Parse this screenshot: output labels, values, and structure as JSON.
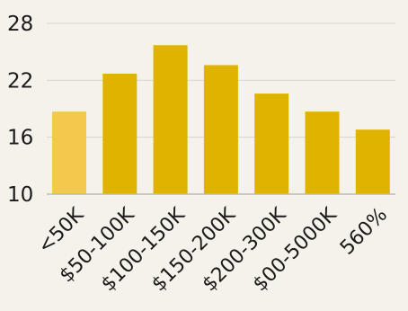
{
  "chart_data": {
    "type": "bar",
    "title": "",
    "xlabel": "",
    "ylabel": "",
    "categories": [
      "<50K",
      "$50-100K",
      "$100-150K",
      "$150-200K",
      "$200-300K",
      "$00-5000K",
      "560%"
    ],
    "values": [
      18.7,
      22.7,
      25.7,
      23.6,
      20.6,
      18.7,
      16.8
    ],
    "ylim": [
      10,
      28
    ],
    "yticks": [
      10,
      16,
      22,
      28
    ],
    "grid": true,
    "colors": {
      "highlight": "#f2c94c",
      "bar": "#dfb300",
      "grid": "#d8d6cc",
      "axis": "#bdbbb2",
      "background": "#f4f2ea"
    },
    "highlight_index": 0
  }
}
